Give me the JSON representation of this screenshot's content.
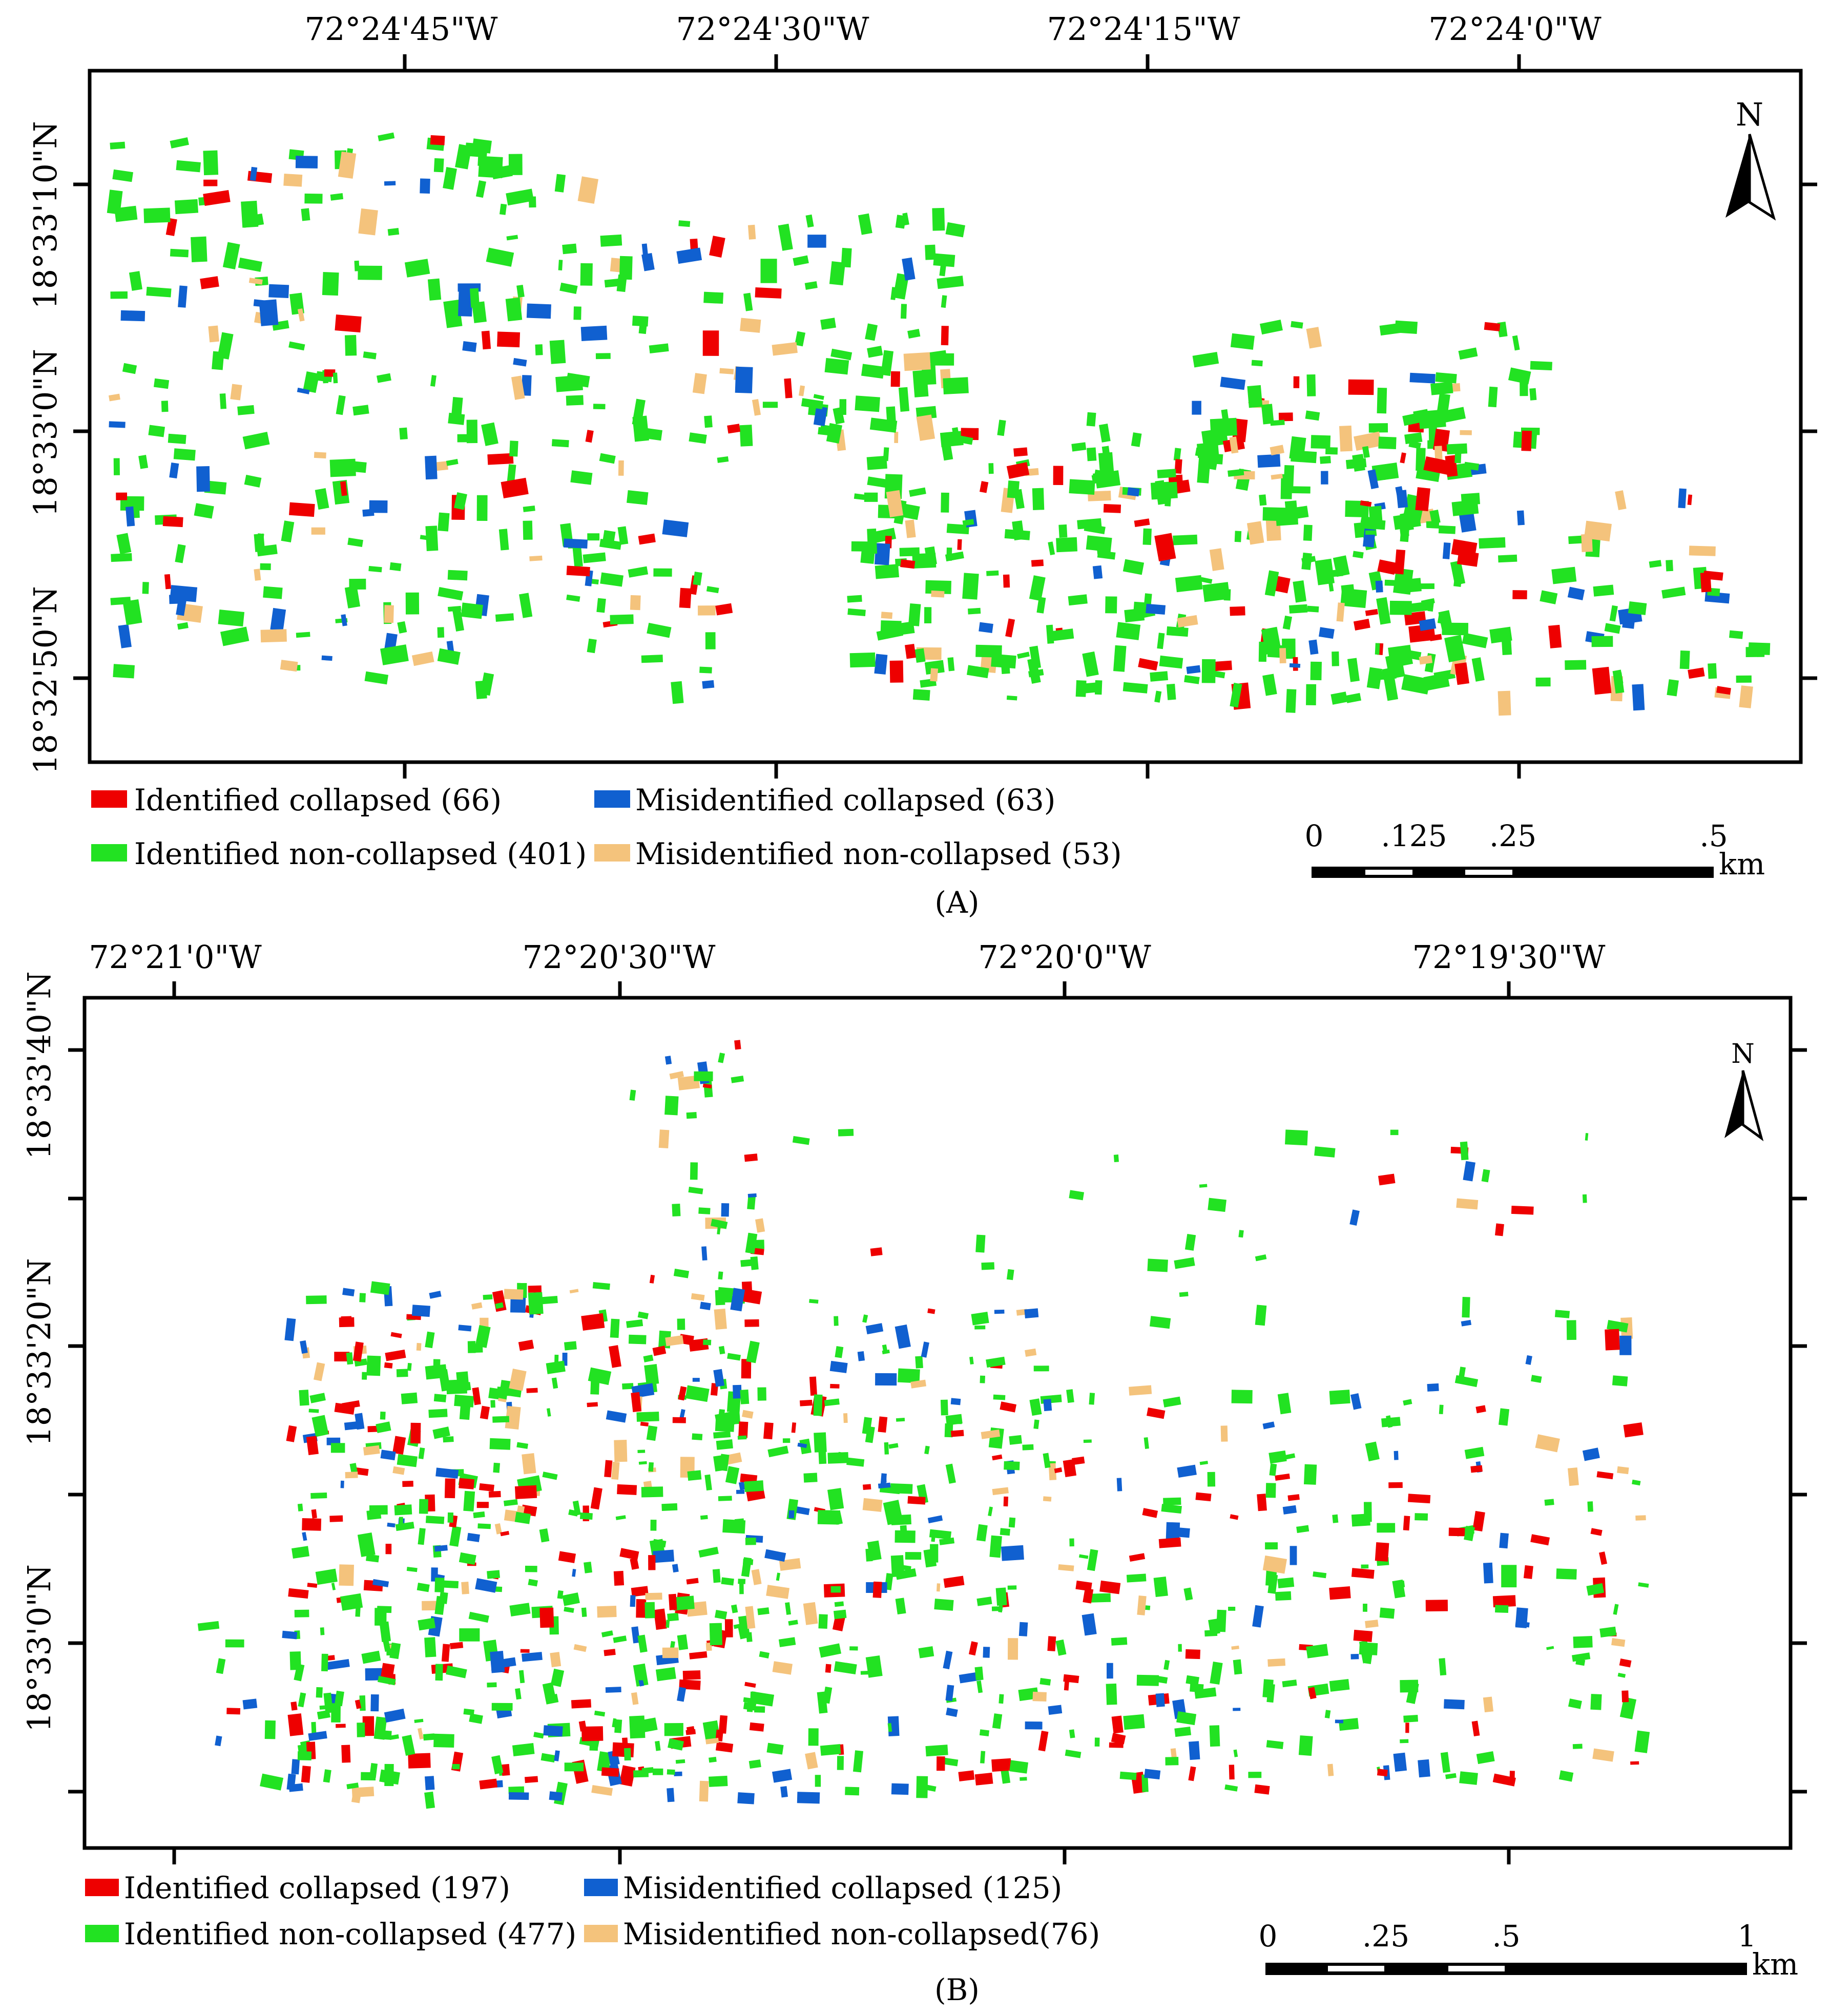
{
  "colors": {
    "identified_collapsed": "#ee0000",
    "misidentified_collapsed": "#1060d0",
    "identified_non_collapsed": "#22e222",
    "misidentified_non_collapsed": "#f4c37c"
  },
  "panels": [
    {
      "caption": "(A)",
      "lon_labels": [
        "72°24'45\"W",
        "72°24'30\"W",
        "72°24'15\"W",
        "72°24'0\"W"
      ],
      "lat_labels": [
        "18°33'10\"N",
        "18°33'0\"N",
        "18°32'50\"N"
      ],
      "north": "N",
      "legend": [
        "Identified collapsed (66)",
        "Misidentified collapsed (63)",
        "Identified non-collapsed (401)",
        "Misidentified non-collapsed (53)"
      ],
      "scale": {
        "ticks": [
          "0",
          ".125",
          ".25",
          ".5"
        ],
        "unit": "km"
      }
    },
    {
      "caption": "(B)",
      "lon_labels": [
        "72°21'0\"W",
        "72°20'30\"W",
        "72°20'0\"W",
        "72°19'30\"W"
      ],
      "lat_labels": [
        "18°33'40\"N",
        "18°33'20\"N",
        "18°33'0\"N"
      ],
      "north": "N",
      "legend": [
        "Identified collapsed (197)",
        "Misidentified collapsed (125)",
        "Identified non-collapsed (477)",
        "Misidentified non-collapsed(76)"
      ],
      "scale": {
        "ticks": [
          "0",
          ".25",
          ".5",
          "1"
        ],
        "unit": "km"
      }
    }
  ]
}
